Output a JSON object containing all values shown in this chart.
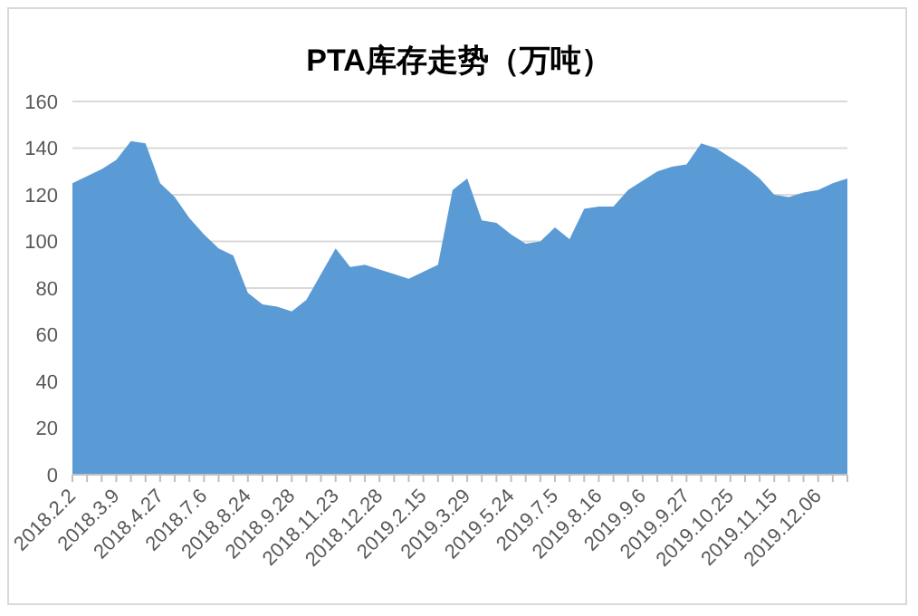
{
  "chart_data": {
    "type": "area",
    "title": "PTA库存走势（万吨）",
    "categories": [
      "2018.2.2",
      null,
      null,
      "2018.3.9",
      null,
      null,
      "2018.4.27",
      null,
      null,
      "2018.7.6",
      null,
      null,
      "2018.8.24",
      null,
      null,
      "2018.9.28",
      null,
      null,
      "2018.11.23",
      null,
      null,
      "2018.12.28",
      null,
      null,
      "2019.2.15",
      null,
      null,
      "2019.3.29",
      null,
      null,
      "2019.5.24",
      null,
      null,
      "2019.7.5",
      null,
      null,
      "2019.8.16",
      null,
      null,
      "2019.9.6",
      null,
      null,
      "2019.9.27",
      null,
      null,
      "2019.10.25",
      null,
      null,
      "2019.11.15",
      null,
      null,
      "2019.12.06",
      null,
      null
    ],
    "series": [
      {
        "color": "#5b9bd5",
        "values": [
          125,
          128,
          131,
          135,
          143,
          142,
          125,
          119,
          110,
          103,
          97,
          94,
          78,
          73,
          72,
          70,
          75,
          86,
          97,
          89,
          90,
          88,
          86,
          84,
          87,
          90,
          122,
          127,
          109,
          108,
          103,
          99,
          100,
          106,
          101,
          114,
          115,
          115,
          122,
          126,
          130,
          132,
          133,
          142,
          140,
          136,
          132,
          127,
          120,
          119,
          121,
          122,
          125,
          127
        ]
      }
    ],
    "ylim": [
      0,
      160
    ],
    "yticks": [
      0,
      20,
      40,
      60,
      80,
      100,
      120,
      140,
      160
    ],
    "grid": "y",
    "legend": false
  }
}
